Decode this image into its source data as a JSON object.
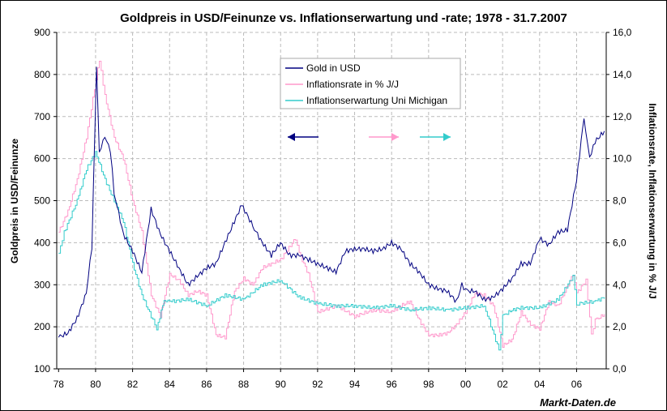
{
  "chart_data": {
    "type": "line",
    "title": "Goldpreis in USD/Feinunze vs. Inflationserwartung und -rate; 1978 - 31.7.2007",
    "ylabel": "Goldpreis in USD/Feinunze",
    "y2label": "Inflationsrate, Inflationserwartung in % J/J",
    "xlabel": "",
    "source": "Markt-Daten.de",
    "xlim": [
      1978,
      2007.6
    ],
    "ylim": [
      100,
      900
    ],
    "y2lim": [
      0,
      16
    ],
    "grid": true,
    "legend_placement": "top-center",
    "x_ticks": [
      "78",
      "80",
      "82",
      "84",
      "86",
      "88",
      "90",
      "92",
      "94",
      "96",
      "98",
      "00",
      "02",
      "04",
      "06"
    ],
    "y_ticks": [
      "100",
      "200",
      "300",
      "400",
      "500",
      "600",
      "700",
      "800",
      "900"
    ],
    "y2_ticks": [
      "0,0",
      "2,0",
      "4,0",
      "6,0",
      "8,0",
      "10,0",
      "12,0",
      "14,0",
      "16,0"
    ],
    "series": [
      {
        "name": "Gold in USD",
        "axis": "left",
        "color": "#000080",
        "arrow": "left",
        "x": [
          1978.0,
          1978.5,
          1979.0,
          1979.5,
          1979.8,
          1980.05,
          1980.2,
          1980.5,
          1980.8,
          1981.0,
          1981.5,
          1982.0,
          1982.5,
          1983.0,
          1983.5,
          1984.0,
          1984.5,
          1985.0,
          1985.5,
          1986.0,
          1986.5,
          1987.0,
          1987.5,
          1987.9,
          1988.5,
          1989.0,
          1989.5,
          1990.0,
          1990.5,
          1991.0,
          1991.5,
          1992.0,
          1992.5,
          1993.0,
          1993.5,
          1994.0,
          1994.5,
          1995.0,
          1995.5,
          1996.0,
          1996.5,
          1997.0,
          1997.5,
          1998.0,
          1998.5,
          1999.0,
          1999.5,
          1999.8,
          2000.0,
          2000.5,
          2001.0,
          2001.5,
          2002.0,
          2002.5,
          2003.0,
          2003.5,
          2004.0,
          2004.5,
          2005.0,
          2005.5,
          2006.0,
          2006.4,
          2006.7,
          2007.0,
          2007.5
        ],
        "y": [
          175,
          185,
          220,
          280,
          390,
          820,
          620,
          650,
          620,
          520,
          420,
          380,
          330,
          480,
          420,
          380,
          340,
          300,
          320,
          340,
          350,
          400,
          450,
          490,
          440,
          400,
          370,
          400,
          370,
          370,
          360,
          350,
          340,
          330,
          380,
          385,
          385,
          380,
          385,
          400,
          385,
          350,
          330,
          300,
          290,
          285,
          260,
          300,
          285,
          285,
          265,
          270,
          290,
          315,
          350,
          350,
          410,
          395,
          425,
          430,
          550,
          700,
          600,
          640,
          665
        ]
      },
      {
        "name": "Inflationsrate in % J/J",
        "axis": "right",
        "color": "#ff99cc",
        "arrow": "right",
        "x": [
          1978.0,
          1978.5,
          1979.0,
          1979.5,
          1980.2,
          1980.5,
          1981.0,
          1981.5,
          1982.0,
          1982.5,
          1983.0,
          1983.5,
          1984.0,
          1984.5,
          1985.0,
          1985.5,
          1986.0,
          1986.5,
          1987.0,
          1987.5,
          1988.0,
          1988.5,
          1989.0,
          1989.5,
          1990.0,
          1990.8,
          1991.0,
          1991.5,
          1992.0,
          1993.0,
          1994.0,
          1995.0,
          1996.0,
          1996.5,
          1997.0,
          1997.5,
          1998.0,
          1998.5,
          1999.0,
          1999.5,
          2000.0,
          2000.5,
          2001.0,
          2001.5,
          2002.0,
          2002.5,
          2003.0,
          2003.5,
          2004.0,
          2004.5,
          2005.0,
          2005.8,
          2006.0,
          2006.5,
          2006.8,
          2007.0,
          2007.5
        ],
        "y": [
          6.5,
          7.5,
          9,
          11,
          14.7,
          13,
          11,
          10,
          8,
          6.5,
          3.5,
          2.5,
          4.5,
          4.2,
          3.5,
          3.7,
          3.5,
          1.6,
          1.5,
          3.7,
          4.3,
          4,
          4.8,
          5,
          5.2,
          6.2,
          5.5,
          4.5,
          2.7,
          3.0,
          2.5,
          2.8,
          2.7,
          3,
          3.2,
          2.3,
          1.6,
          1.6,
          1.7,
          2.1,
          2.7,
          3.6,
          3.5,
          3.0,
          1.1,
          1.4,
          2.7,
          2.1,
          1.9,
          3.2,
          3.0,
          4.5,
          3.6,
          4.2,
          1.6,
          2.3,
          2.6
        ]
      },
      {
        "name": "Inflationserwartung Uni Michigan",
        "axis": "right",
        "color": "#33cccc",
        "arrow": "right",
        "x": [
          1978.0,
          1978.3,
          1979.0,
          1979.5,
          1980.0,
          1980.5,
          1981.0,
          1981.5,
          1982.0,
          1982.5,
          1983.0,
          1983.3,
          1983.7,
          1984.0,
          1985.0,
          1986.0,
          1987.0,
          1988.0,
          1989.0,
          1990.0,
          1991.0,
          1992.0,
          1993.0,
          1994.0,
          1995.0,
          1996.0,
          1997.0,
          1998.0,
          1999.0,
          2000.0,
          2001.0,
          2001.8,
          2002.0,
          2002.5,
          2003.0,
          2004.0,
          2005.0,
          2005.8,
          2006.0,
          2007.0,
          2007.5
        ],
        "y": [
          5.5,
          6.5,
          8,
          9.5,
          10.3,
          9,
          8,
          7,
          5,
          3.5,
          2.5,
          1.9,
          3.3,
          3.2,
          3.3,
          3.0,
          3.5,
          3.3,
          4.0,
          4.2,
          3.4,
          3.1,
          3.0,
          3.0,
          2.9,
          3.0,
          2.8,
          2.9,
          2.8,
          2.9,
          3.0,
          0.9,
          2.5,
          2.8,
          2.9,
          2.9,
          3.3,
          4.4,
          3.1,
          3.2,
          3.4
        ]
      }
    ]
  }
}
